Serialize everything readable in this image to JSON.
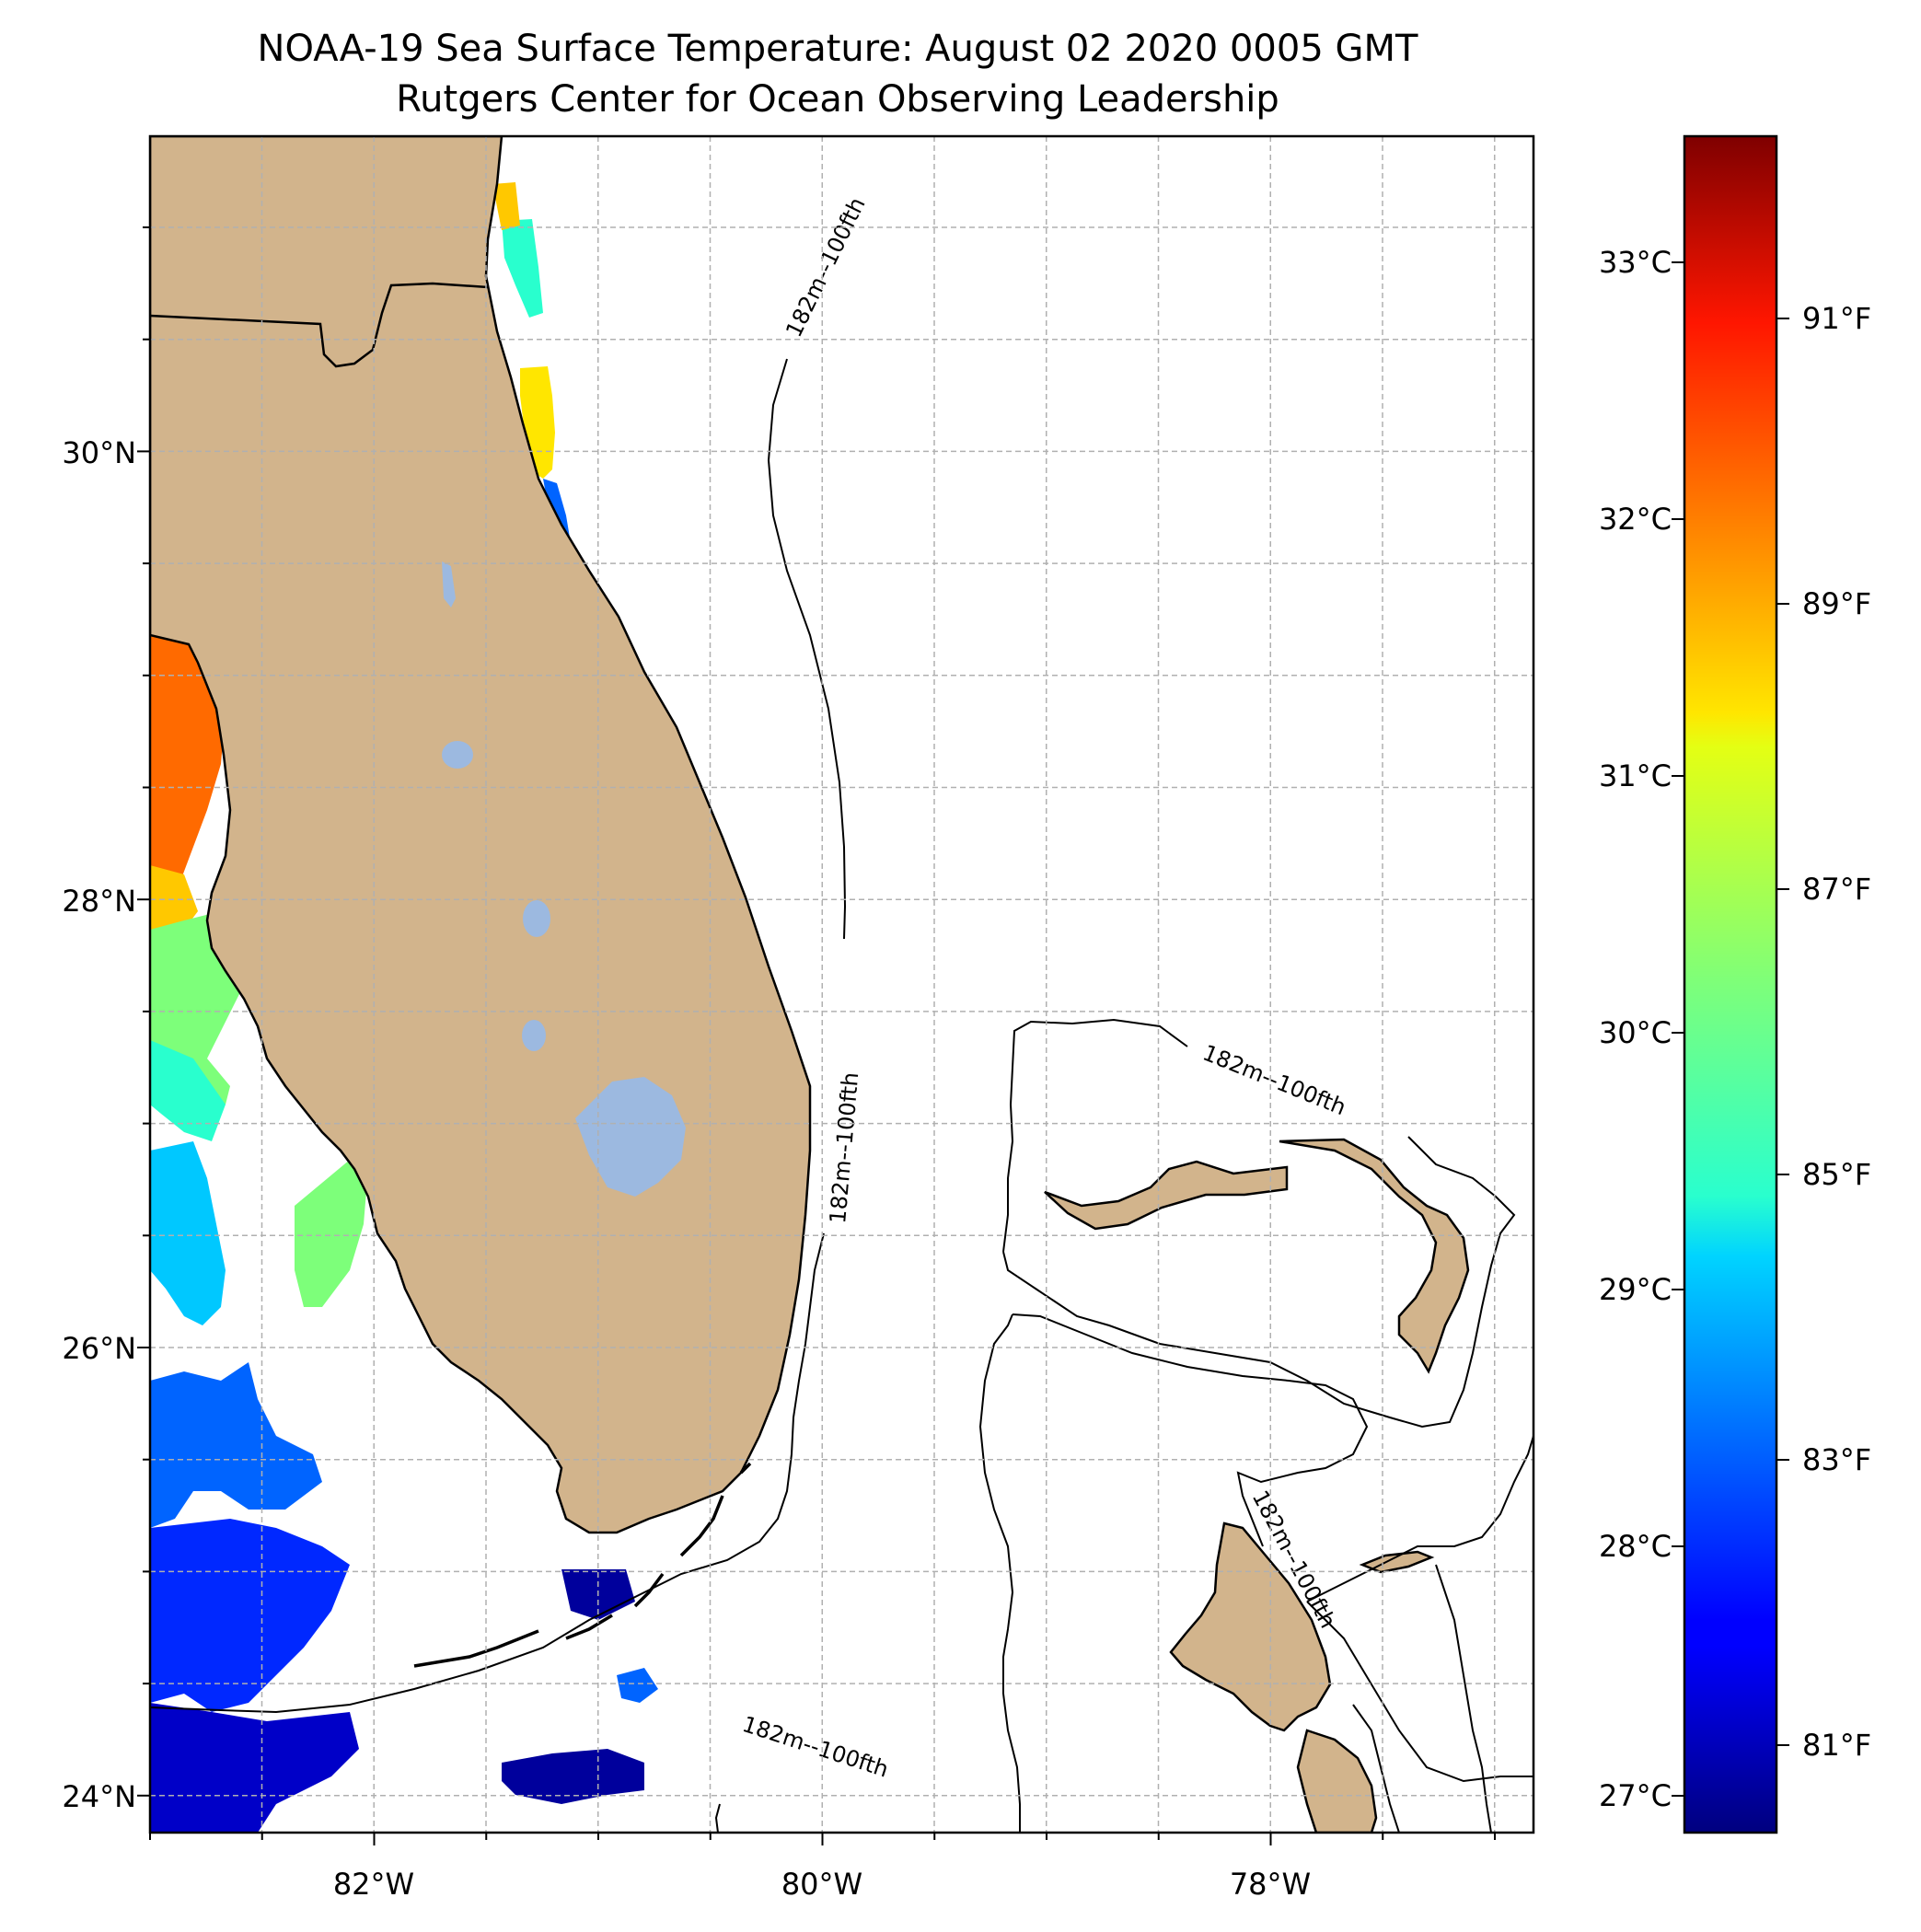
{
  "title": {
    "line1": "NOAA-19 Sea Surface Temperature: August 02 2020 0005 GMT",
    "line2": "Rutgers Center for Ocean Observing Leadership"
  },
  "map": {
    "lon_labels": [
      "82°W",
      "80°W",
      "78°W"
    ],
    "lat_labels": [
      "30°N",
      "28°N",
      "26°N",
      "24°N"
    ],
    "land_color": "#d2b48c",
    "lake_color": "#9cb9e0",
    "grid": true,
    "isobath_label": "182m--100fth"
  },
  "colorbar": {
    "colormap": "jet",
    "celsius_labels": [
      "33°C",
      "32°C",
      "31°C",
      "30°C",
      "29°C",
      "28°C",
      "27°C"
    ],
    "fahrenheit_labels": [
      "91°F",
      "89°F",
      "87°F",
      "85°F",
      "83°F",
      "81°F"
    ]
  }
}
